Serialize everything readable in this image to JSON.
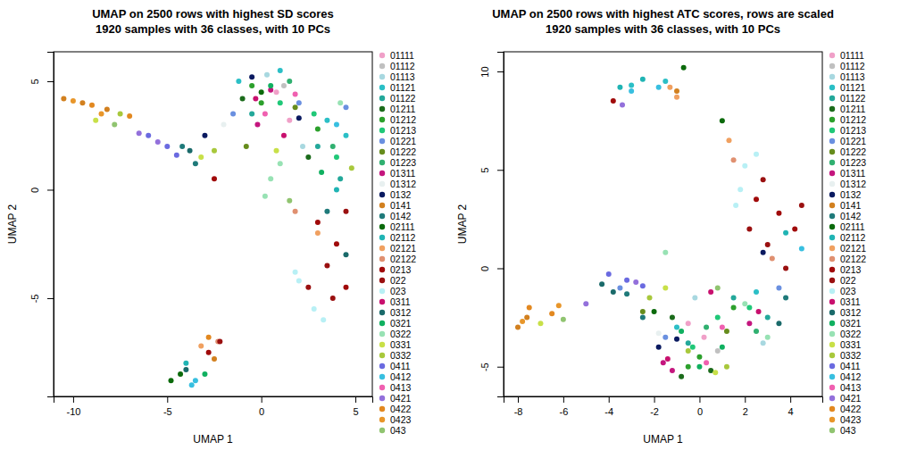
{
  "chart_data": [
    {
      "type": "scatter",
      "title": "UMAP on 2500 rows with highest SD scores",
      "subtitle": "1920 samples with 36 classes, with 10 PCs",
      "x_label": "UMAP 1",
      "y_label": "UMAP 2",
      "xlim": [
        -11.04,
        5.9
      ],
      "ylim": [
        -9.53,
        6.36
      ],
      "xticks": [
        -10,
        -5,
        0,
        5
      ],
      "yticks": [
        -5,
        0,
        5
      ],
      "legend": "right",
      "series": [
        {
          "name": "01111",
          "color": "#f0a0c8",
          "x": [
            0.8,
            1.5
          ],
          "y": [
            4.5,
            3.2
          ]
        },
        {
          "name": "01112",
          "color": "#c0c0c0",
          "x": [
            1.2
          ],
          "y": [
            4.8
          ]
        },
        {
          "name": "01113",
          "color": "#a8d8e0",
          "x": [
            0.3,
            2.2
          ],
          "y": [
            5.3,
            2.0
          ]
        },
        {
          "name": "01121",
          "color": "#2bbfc6",
          "x": [
            3.5,
            4.5,
            -1.2,
            1.0
          ],
          "y": [
            3.2,
            2.5,
            5.0,
            5.5
          ]
        },
        {
          "name": "01122",
          "color": "#23a89a",
          "x": [
            3.0,
            4.2,
            -0.5
          ],
          "y": [
            2.0,
            0.5,
            3.5
          ]
        },
        {
          "name": "01211",
          "color": "#1b6b1b",
          "x": [
            -1.0,
            2.5
          ],
          "y": [
            4.2,
            1.5
          ]
        },
        {
          "name": "01212",
          "color": "#2ca02c",
          "x": [
            0.0,
            3.0,
            -0.5
          ],
          "y": [
            4.0,
            2.8,
            4.8
          ]
        },
        {
          "name": "01213",
          "color": "#20c878",
          "x": [
            2.8,
            4.0,
            1.0
          ],
          "y": [
            3.5,
            1.5,
            4.0
          ]
        },
        {
          "name": "01221",
          "color": "#6a90e0",
          "x": [
            4.5,
            2.0,
            -1.5
          ],
          "y": [
            3.8,
            4.0,
            3.5
          ]
        },
        {
          "name": "01222",
          "color": "#668c1c",
          "x": [
            1.8,
            -0.8
          ],
          "y": [
            3.8,
            2.0
          ]
        },
        {
          "name": "01223",
          "color": "#30b070",
          "x": [
            3.8,
            1.5
          ],
          "y": [
            2.0,
            5.0
          ]
        },
        {
          "name": "01311",
          "color": "#c4167e",
          "x": [
            0.5,
            -0.2
          ],
          "y": [
            4.6,
            3.0
          ]
        },
        {
          "name": "01312",
          "color": "#e8f0f0",
          "x": [
            -2.0
          ],
          "y": [
            3.0
          ]
        },
        {
          "name": "0132",
          "color": "#0a1a60",
          "x": [
            -3.0,
            -0.5,
            2.0
          ],
          "y": [
            2.5,
            5.2,
            3.3
          ]
        },
        {
          "name": "0141",
          "color": "#d2801f",
          "x": [
            -10.5,
            -9.5,
            -8.2,
            -2.5
          ],
          "y": [
            4.2,
            4.0,
            3.7,
            -7.8
          ]
        },
        {
          "name": "0142",
          "color": "#1f7a7a",
          "x": [
            -4.2,
            -3.5,
            3.5
          ],
          "y": [
            2.0,
            1.2,
            -1.0
          ]
        },
        {
          "name": "02111",
          "color": "#0b6a0b",
          "x": [
            -4.8,
            -4.3,
            0.0
          ],
          "y": [
            -8.8,
            -8.5,
            4.5
          ]
        },
        {
          "name": "02112",
          "color": "#20b4b4",
          "x": [
            -4.0,
            4.0
          ],
          "y": [
            -8.0,
            0.0
          ]
        },
        {
          "name": "02121",
          "color": "#f0a060",
          "x": [
            -3.2,
            3.0
          ],
          "y": [
            -7.2,
            -2.0
          ]
        },
        {
          "name": "02122",
          "color": "#e09070",
          "x": [
            -2.3,
            1.8
          ],
          "y": [
            -7.0,
            -1.0
          ]
        },
        {
          "name": "0213",
          "color": "#a00a0a",
          "x": [
            3.0,
            4.0,
            4.5,
            -2.5,
            -2.8
          ],
          "y": [
            -1.5,
            -2.5,
            -4.5,
            0.5,
            -7.5
          ]
        },
        {
          "name": "022",
          "color": "#9a1010",
          "x": [
            3.5,
            4.5,
            2.5,
            3.8,
            -2.2
          ],
          "y": [
            -3.5,
            -1.0,
            -4.5,
            -5.0,
            -7.0
          ]
        },
        {
          "name": "023",
          "color": "#b8f0f5",
          "x": [
            2.0,
            2.8,
            3.3,
            1.8
          ],
          "y": [
            -4.2,
            -5.5,
            -6.0,
            -3.8
          ]
        },
        {
          "name": "0311",
          "color": "#c8106e",
          "x": [
            1.2,
            -0.3
          ],
          "y": [
            2.5,
            4.2
          ]
        },
        {
          "name": "0312",
          "color": "#1a6a6a",
          "x": [
            -4.0,
            -3.8,
            4.5
          ],
          "y": [
            -8.3,
            1.8,
            -3.0
          ]
        },
        {
          "name": "0321",
          "color": "#10b060",
          "x": [
            3.2,
            0.5,
            -3.0
          ],
          "y": [
            0.8,
            4.8,
            -8.5
          ]
        },
        {
          "name": "0322",
          "color": "#98e2b4",
          "x": [
            0.5,
            0.2,
            1.0,
            4.2
          ],
          "y": [
            0.5,
            -0.3,
            1.2,
            4.0
          ]
        },
        {
          "name": "0331",
          "color": "#c8e048",
          "x": [
            -8.8,
            -3.2,
            0.8
          ],
          "y": [
            3.2,
            1.5,
            1.8
          ]
        },
        {
          "name": "0332",
          "color": "#a8c83c",
          "x": [
            -2.5,
            -7.5,
            4.8
          ],
          "y": [
            1.8,
            3.5,
            1.0
          ]
        },
        {
          "name": "0411",
          "color": "#6a6ae0",
          "x": [
            -6.0,
            -5.0,
            -4.5
          ],
          "y": [
            2.5,
            2.0,
            1.6
          ]
        },
        {
          "name": "0412",
          "color": "#38bfe0",
          "x": [
            -3.5,
            -3.7,
            4.0
          ],
          "y": [
            -8.8,
            -9.0,
            3.0
          ]
        },
        {
          "name": "0413",
          "color": "#f060b0",
          "x": [
            1.8,
            0.2
          ],
          "y": [
            4.4,
            3.5
          ]
        },
        {
          "name": "0421",
          "color": "#9370db",
          "x": [
            -5.5,
            -6.5
          ],
          "y": [
            2.2,
            2.6
          ]
        },
        {
          "name": "0422",
          "color": "#e28820",
          "x": [
            -9.0,
            -7.0,
            -2.8
          ],
          "y": [
            3.9,
            3.4,
            -6.8
          ]
        },
        {
          "name": "0423",
          "color": "#e8962a",
          "x": [
            -10.0,
            -8.5
          ],
          "y": [
            4.1,
            3.5
          ]
        },
        {
          "name": "043",
          "color": "#90c470",
          "x": [
            -7.8,
            1.5
          ],
          "y": [
            3.0,
            -0.5
          ]
        }
      ]
    },
    {
      "type": "scatter",
      "title": "UMAP on 2500 rows with highest ATC scores, rows are scaled",
      "subtitle": "1920 samples with 36 classes, with 10 PCs",
      "x_label": "UMAP 1",
      "y_label": "UMAP 2",
      "xlim": [
        -8.63,
        5.41
      ],
      "ylim": [
        -6.51,
        11.0
      ],
      "xticks": [
        -8,
        -6,
        -4,
        -2,
        0,
        2,
        4
      ],
      "yticks": [
        -5,
        0,
        5,
        10
      ],
      "legend": "right",
      "series": [
        {
          "name": "01111",
          "color": "#f0a0c8",
          "x": [
            0.2,
            -0.5
          ],
          "y": [
            -3.5,
            -2.8
          ]
        },
        {
          "name": "01112",
          "color": "#c0c0c0",
          "x": [
            0.8
          ],
          "y": [
            -4.2
          ]
        },
        {
          "name": "01113",
          "color": "#a8d8e0",
          "x": [
            2.8,
            -0.2
          ],
          "y": [
            -3.8,
            -1.5
          ]
        },
        {
          "name": "01121",
          "color": "#2bbfc6",
          "x": [
            -3.0,
            -1.5,
            2.5,
            -1.0
          ],
          "y": [
            9.3,
            9.5,
            -1.2,
            -3.0
          ]
        },
        {
          "name": "01122",
          "color": "#23a89a",
          "x": [
            3.0,
            -0.5,
            1.5
          ],
          "y": [
            -2.5,
            -3.8,
            -1.5
          ]
        },
        {
          "name": "01211",
          "color": "#1b6b1b",
          "x": [
            -0.8,
            -1.2,
            0.5
          ],
          "y": [
            -5.5,
            -2.5,
            -5.2
          ]
        },
        {
          "name": "01212",
          "color": "#2ca02c",
          "x": [
            -0.5,
            0.0,
            1.5
          ],
          "y": [
            -5.0,
            -4.5,
            -2.0
          ]
        },
        {
          "name": "01213",
          "color": "#20c878",
          "x": [
            -0.3,
            0.8,
            2.2
          ],
          "y": [
            -4.0,
            -2.5,
            -2.0
          ]
        },
        {
          "name": "01221",
          "color": "#6a90e0",
          "x": [
            -1.5,
            3.5,
            -3.5
          ],
          "y": [
            -3.5,
            -1.0,
            -1.0
          ]
        },
        {
          "name": "01222",
          "color": "#668c1c",
          "x": [
            -2.5,
            1.2
          ],
          "y": [
            -2.2,
            -3.2
          ]
        },
        {
          "name": "01223",
          "color": "#30b070",
          "x": [
            0.3,
            2.5
          ],
          "y": [
            -3.0,
            -3.2
          ]
        },
        {
          "name": "01311",
          "color": "#c4167e",
          "x": [
            -1.6,
            -1.2,
            2.2
          ],
          "y": [
            -4.8,
            -5.2,
            -2.8
          ]
        },
        {
          "name": "01312",
          "color": "#e8f0f0",
          "x": [
            -1.8
          ],
          "y": [
            -3.3
          ]
        },
        {
          "name": "0132",
          "color": "#0a1a60",
          "x": [
            -1.8,
            -1.0,
            2.8
          ],
          "y": [
            -4.0,
            -3.6,
            0.8
          ]
        },
        {
          "name": "0141",
          "color": "#d2801f",
          "x": [
            -8.0,
            -7.6,
            -1.0
          ],
          "y": [
            -3.0,
            -2.5,
            9.0
          ]
        },
        {
          "name": "0142",
          "color": "#1f7a7a",
          "x": [
            -3.2,
            -2.5,
            3.8
          ],
          "y": [
            -1.3,
            -2.5,
            -1.5
          ]
        },
        {
          "name": "02111",
          "color": "#0b6a0b",
          "x": [
            -0.7,
            1.0,
            -2.0
          ],
          "y": [
            10.2,
            7.5,
            -2.2
          ]
        },
        {
          "name": "02112",
          "color": "#20b4b4",
          "x": [
            -3.5,
            -2.5,
            3.8
          ],
          "y": [
            9.2,
            9.6,
            1.8
          ]
        },
        {
          "name": "02121",
          "color": "#f0a060",
          "x": [
            1.3,
            -1.0,
            -1.3
          ],
          "y": [
            6.5,
            8.7,
            9.2
          ]
        },
        {
          "name": "02122",
          "color": "#e09070",
          "x": [
            1.5,
            3.2
          ],
          "y": [
            5.5,
            0.5
          ]
        },
        {
          "name": "0213",
          "color": "#a00a0a",
          "x": [
            2.5,
            3.5,
            4.2,
            -3.8
          ],
          "y": [
            3.5,
            2.8,
            2.0,
            8.5
          ]
        },
        {
          "name": "022",
          "color": "#9a1010",
          "x": [
            2.2,
            3.0,
            4.5,
            2.8,
            3.8
          ],
          "y": [
            2.0,
            1.2,
            3.2,
            4.5,
            0.0
          ]
        },
        {
          "name": "023",
          "color": "#b8f0f5",
          "x": [
            1.8,
            2.0,
            2.5,
            1.6
          ],
          "y": [
            4.0,
            5.2,
            5.8,
            3.2
          ]
        },
        {
          "name": "0311",
          "color": "#c8106e",
          "x": [
            -1.4,
            0.5,
            2.6
          ],
          "y": [
            -4.6,
            -1.2,
            -2.2
          ]
        },
        {
          "name": "0312",
          "color": "#1a6a6a",
          "x": [
            -4.3,
            -3.8,
            3.5
          ],
          "y": [
            -0.8,
            -1.2,
            -2.8
          ]
        },
        {
          "name": "0321",
          "color": "#10b060",
          "x": [
            0.0,
            1.0,
            -0.8
          ],
          "y": [
            -5.0,
            -4.0,
            -3.2
          ]
        },
        {
          "name": "0322",
          "color": "#98e2b4",
          "x": [
            2.0,
            3.0,
            -1.5
          ],
          "y": [
            -1.8,
            -3.5,
            0.8
          ]
        },
        {
          "name": "0331",
          "color": "#c8e048",
          "x": [
            -7.0,
            -1.5,
            0.7
          ],
          "y": [
            -2.8,
            -1.0,
            -5.3
          ]
        },
        {
          "name": "0332",
          "color": "#a8c83c",
          "x": [
            -0.5,
            1.2,
            -2.2
          ],
          "y": [
            -4.2,
            -5.0,
            -1.5
          ]
        },
        {
          "name": "0411",
          "color": "#6a6ae0",
          "x": [
            -4.0,
            -3.2,
            -2.5
          ],
          "y": [
            -0.3,
            -0.6,
            -0.9
          ]
        },
        {
          "name": "0412",
          "color": "#38bfe0",
          "x": [
            -3.0,
            -1.8,
            4.5
          ],
          "y": [
            9.0,
            9.2,
            1.0
          ]
        },
        {
          "name": "0413",
          "color": "#f060b0",
          "x": [
            1.0,
            0.3
          ],
          "y": [
            -3.0,
            -4.8
          ]
        },
        {
          "name": "0421",
          "color": "#9370db",
          "x": [
            -3.4,
            -5.0,
            -2.8
          ],
          "y": [
            8.3,
            -1.8,
            -0.7
          ]
        },
        {
          "name": "0422",
          "color": "#e28820",
          "x": [
            -7.5,
            -6.5
          ],
          "y": [
            -2.0,
            -2.3
          ]
        },
        {
          "name": "0423",
          "color": "#e8962a",
          "x": [
            -7.8,
            -6.2
          ],
          "y": [
            -2.7,
            -1.9
          ]
        },
        {
          "name": "043",
          "color": "#90c470",
          "x": [
            -6.0,
            0.8
          ],
          "y": [
            -2.6,
            -1.0
          ]
        }
      ]
    }
  ]
}
